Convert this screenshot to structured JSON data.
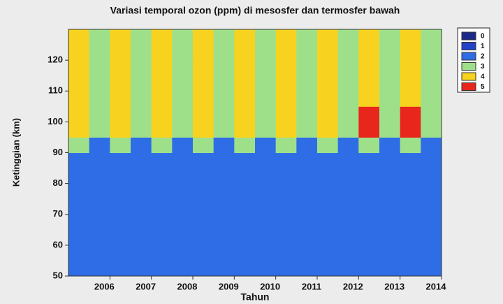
{
  "chart_data": {
    "type": "heatmap",
    "title": "Variasi temporal ozon (ppm) di mesosfer dan termosfer bawah",
    "xlabel": "Tahun",
    "ylabel": "Ketinggian (km)",
    "xbins": [
      2005,
      2005.5,
      2006,
      2006.5,
      2007,
      2007.5,
      2008,
      2008.5,
      2009,
      2009.5,
      2010,
      2010.5,
      2011,
      2011.5,
      2012,
      2012.5,
      2013,
      2013.5,
      2014
    ],
    "ybins": [
      50,
      55,
      60,
      65,
      70,
      75,
      80,
      85,
      90,
      95,
      100,
      105,
      110,
      115,
      120,
      125,
      130
    ],
    "z": [
      [
        2,
        2,
        2,
        2,
        2,
        2,
        2,
        2,
        2,
        2,
        2,
        2,
        2,
        2,
        2,
        2,
        2,
        2
      ],
      [
        2,
        2,
        2,
        2,
        2,
        2,
        2,
        2,
        2,
        2,
        2,
        2,
        2,
        2,
        2,
        2,
        2,
        2
      ],
      [
        2,
        2,
        2,
        2,
        2,
        2,
        2,
        2,
        2,
        2,
        2,
        2,
        2,
        2,
        2,
        2,
        2,
        2
      ],
      [
        2,
        2,
        2,
        2,
        2,
        2,
        2,
        2,
        2,
        2,
        2,
        2,
        2,
        2,
        2,
        2,
        2,
        2
      ],
      [
        2,
        2,
        2,
        2,
        2,
        2,
        2,
        2,
        2,
        2,
        2,
        2,
        2,
        2,
        2,
        2,
        2,
        2
      ],
      [
        2,
        2,
        2,
        2,
        2,
        2,
        2,
        2,
        2,
        2,
        2,
        2,
        2,
        2,
        2,
        2,
        2,
        2
      ],
      [
        2,
        2,
        2,
        2,
        2,
        2,
        2,
        2,
        2,
        2,
        2,
        2,
        2,
        2,
        2,
        2,
        2,
        2
      ],
      [
        2,
        2,
        2,
        2,
        2,
        2,
        2,
        2,
        2,
        2,
        2,
        2,
        2,
        2,
        2,
        2,
        2,
        2
      ],
      [
        3,
        2,
        3,
        2,
        3,
        2,
        3,
        2,
        3,
        2,
        3,
        2,
        3,
        2,
        3,
        2,
        3,
        2
      ],
      [
        4,
        3,
        4,
        3,
        4,
        3,
        4,
        3,
        4,
        3,
        4,
        3,
        4,
        3,
        5,
        3,
        5,
        3
      ],
      [
        4,
        3,
        4,
        3,
        4,
        3,
        4,
        3,
        4,
        3,
        4,
        3,
        4,
        3,
        5,
        3,
        5,
        3
      ],
      [
        4,
        3,
        4,
        3,
        4,
        3,
        4,
        3,
        4,
        3,
        4,
        3,
        4,
        3,
        4,
        3,
        4,
        3
      ],
      [
        4,
        3,
        4,
        3,
        4,
        3,
        4,
        3,
        4,
        3,
        4,
        3,
        4,
        3,
        4,
        3,
        4,
        3
      ],
      [
        4,
        3,
        4,
        3,
        4,
        3,
        4,
        3,
        4,
        3,
        4,
        3,
        4,
        3,
        4,
        3,
        4,
        3
      ],
      [
        4,
        3,
        4,
        3,
        4,
        3,
        4,
        3,
        4,
        3,
        4,
        3,
        4,
        3,
        4,
        3,
        4,
        3
      ],
      [
        4,
        3,
        4,
        3,
        4,
        3,
        4,
        3,
        4,
        3,
        4,
        3,
        4,
        3,
        4,
        3,
        4,
        3
      ]
    ],
    "levels": [
      0,
      1,
      2,
      3,
      4,
      5
    ],
    "colors": [
      "#1c2a8c",
      "#2444c8",
      "#2f6de6",
      "#9ee08a",
      "#f7d21e",
      "#e8261c"
    ],
    "xlim": [
      2005,
      2014
    ],
    "ylim": [
      50,
      130
    ],
    "xticks": [
      2006,
      2007,
      2008,
      2009,
      2010,
      2011,
      2012,
      2013,
      2014
    ],
    "yticks": [
      50,
      60,
      70,
      80,
      90,
      100,
      110,
      120
    ]
  }
}
